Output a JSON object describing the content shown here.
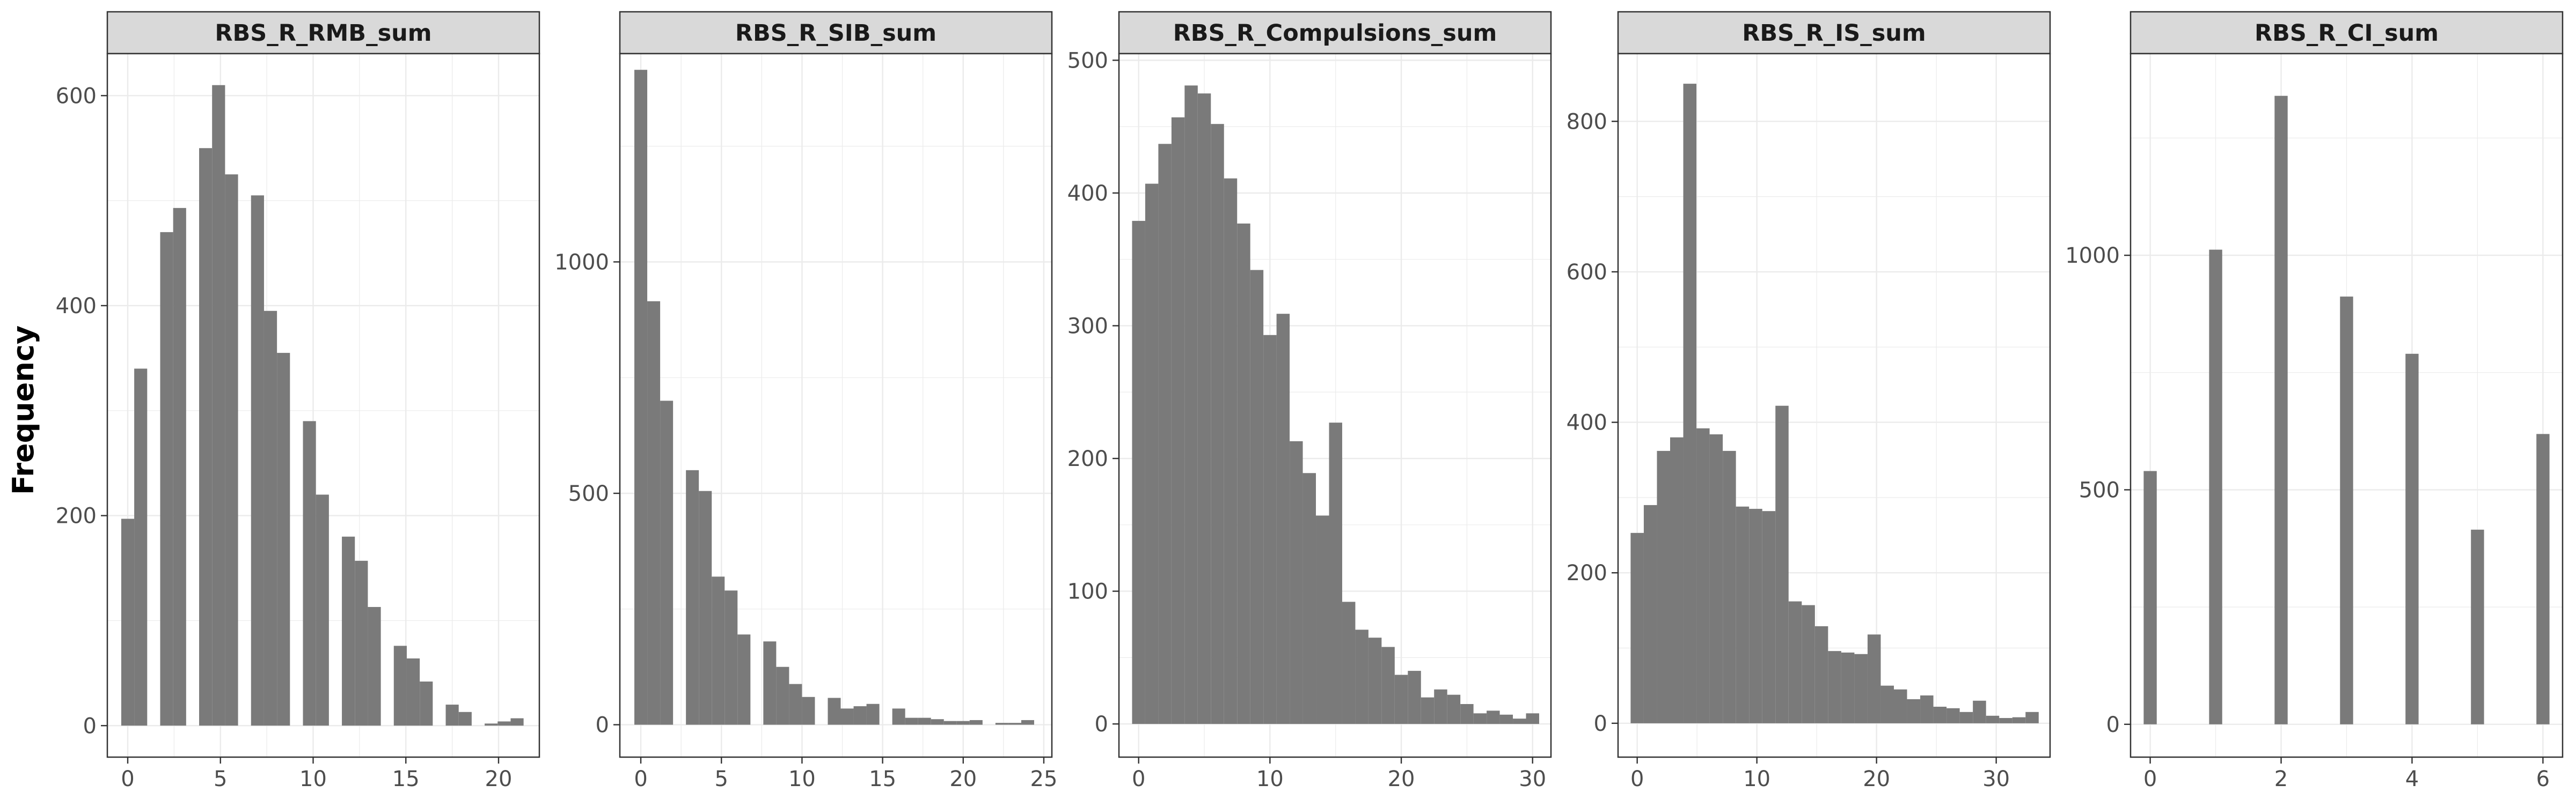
{
  "chart_data": {
    "type": "bar",
    "ylabel": "Frequency",
    "xlabel": "",
    "grid": true,
    "bar_color": "#7a7a7a",
    "strip_fill": "#d9d9d9",
    "panel_border_color": "#333333",
    "grid_color": "#ebebeb",
    "panels": [
      {
        "title": "RBS_R_RMB_sum",
        "xlim": [
          -1.1,
          22.2
        ],
        "ylim": [
          -30,
          640
        ],
        "xticks": [
          0,
          5,
          10,
          15,
          20
        ],
        "xtick_labels": [
          "0",
          "5",
          "10",
          "15",
          "20"
        ],
        "yticks": [
          0,
          200,
          400,
          600
        ],
        "ytick_labels": [
          "0",
          "200",
          "400",
          "600"
        ],
        "bin_width": 0.7,
        "x": [
          0,
          0.7,
          2.1,
          2.8,
          4.2,
          4.9,
          5.6,
          7.0,
          7.7,
          8.4,
          9.8,
          10.5,
          11.9,
          12.6,
          13.3,
          14.7,
          15.4,
          16.1,
          17.5,
          18.2,
          19.6,
          20.3,
          21.0
        ],
        "values": [
          197,
          340,
          470,
          493,
          550,
          610,
          525,
          505,
          395,
          355,
          290,
          220,
          180,
          157,
          113,
          76,
          64,
          42,
          20,
          13,
          2,
          4,
          7
        ]
      },
      {
        "title": "RBS_R_SIB_sum",
        "xlim": [
          -1.3,
          25.5
        ],
        "ylim": [
          -70,
          1450
        ],
        "xticks": [
          0,
          5,
          10,
          15,
          20,
          25
        ],
        "xtick_labels": [
          "0",
          "5",
          "10",
          "15",
          "20",
          "25"
        ],
        "yticks": [
          0,
          500,
          1000
        ],
        "ytick_labels": [
          "0",
          "500",
          "1000"
        ],
        "bin_width": 0.8,
        "x": [
          0,
          0.8,
          1.6,
          3.2,
          4.0,
          4.8,
          5.6,
          6.4,
          8.0,
          8.8,
          9.6,
          10.4,
          12.0,
          12.8,
          13.6,
          14.4,
          16.0,
          16.8,
          17.6,
          18.4,
          19.2,
          20.0,
          20.8,
          22.4,
          23.2,
          24.0
        ],
        "values": [
          1415,
          915,
          700,
          550,
          505,
          320,
          290,
          195,
          180,
          125,
          88,
          60,
          58,
          35,
          40,
          45,
          35,
          15,
          15,
          12,
          8,
          8,
          10,
          4,
          4,
          10
        ]
      },
      {
        "title": "RBS_R_Compulsions_sum",
        "xlim": [
          -1.5,
          31.4
        ],
        "ylim": [
          -25,
          505
        ],
        "xticks": [
          0,
          10,
          20,
          30
        ],
        "xtick_labels": [
          "0",
          "10",
          "20",
          "30"
        ],
        "yticks": [
          0,
          100,
          200,
          300,
          400,
          500
        ],
        "ytick_labels": [
          "0",
          "100",
          "200",
          "300",
          "400",
          "500"
        ],
        "bin_width": 1.0,
        "x": [
          0,
          1,
          2,
          3,
          4,
          5,
          6,
          7,
          8,
          9,
          10,
          11,
          12,
          13,
          14,
          15,
          16,
          17,
          18,
          19,
          20,
          21,
          22,
          23,
          24,
          25,
          26,
          27,
          28,
          29,
          30
        ],
        "values": [
          379,
          407,
          437,
          457,
          481,
          475,
          452,
          411,
          377,
          342,
          293,
          309,
          213,
          189,
          157,
          227,
          92,
          71,
          65,
          58,
          37,
          40,
          20,
          26,
          22,
          15,
          8,
          10,
          7,
          4,
          8
        ]
      },
      {
        "title": "RBS_R_IS_sum",
        "xlim": [
          -1.6,
          34.5
        ],
        "ylim": [
          -45,
          890
        ],
        "xticks": [
          0,
          10,
          20,
          30
        ],
        "xtick_labels": [
          "0",
          "10",
          "20",
          "30"
        ],
        "yticks": [
          0,
          200,
          400,
          600,
          800
        ],
        "ytick_labels": [
          "0",
          "200",
          "400",
          "600",
          "800"
        ],
        "bin_width": 1.1,
        "x": [
          0,
          1.1,
          2.2,
          3.3,
          4.4,
          5.5,
          6.6,
          7.7,
          8.8,
          9.9,
          11.0,
          12.1,
          13.2,
          14.3,
          15.4,
          16.5,
          17.6,
          18.7,
          19.8,
          20.9,
          22.0,
          23.1,
          24.2,
          25.3,
          26.4,
          27.5,
          28.6,
          29.7,
          30.8,
          31.9,
          33.0
        ],
        "values": [
          253,
          290,
          362,
          380,
          850,
          392,
          384,
          362,
          288,
          285,
          282,
          422,
          162,
          157,
          129,
          96,
          94,
          92,
          118,
          50,
          45,
          32,
          37,
          22,
          20,
          15,
          30,
          10,
          7,
          8,
          15
        ]
      },
      {
        "title": "RBS_R_CI_sum",
        "xlim": [
          -0.3,
          6.3
        ],
        "ylim": [
          -70,
          1430
        ],
        "xticks": [
          0,
          2,
          4,
          6
        ],
        "xtick_labels": [
          "0",
          "2",
          "4",
          "6"
        ],
        "yticks": [
          0,
          500,
          1000
        ],
        "ytick_labels": [
          "0",
          "500",
          "1000"
        ],
        "bin_width": 0.2,
        "x": [
          0,
          1,
          2,
          3,
          4,
          5,
          6
        ],
        "values": [
          540,
          1012,
          1340,
          912,
          790,
          415,
          619
        ]
      }
    ]
  }
}
